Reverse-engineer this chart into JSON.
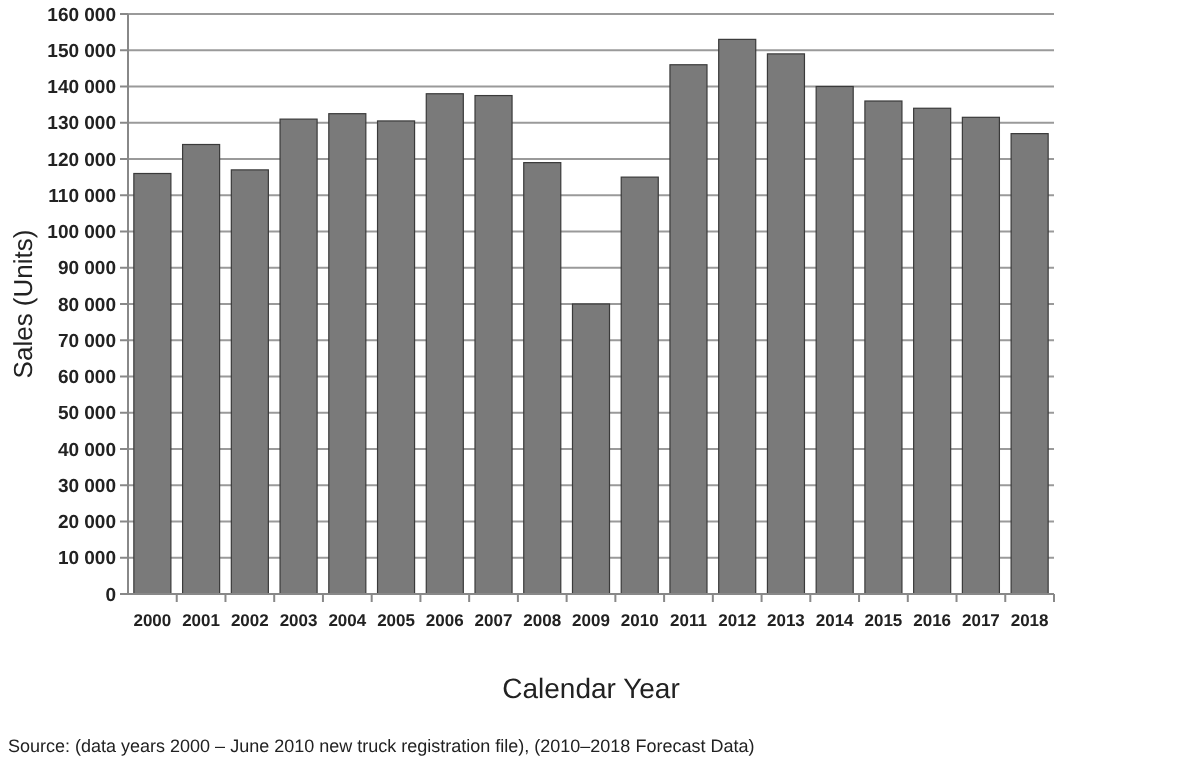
{
  "chart_data": {
    "type": "bar",
    "xlabel": "Calendar Year",
    "ylabel": "Sales (Units)",
    "categories": [
      "2000",
      "2001",
      "2002",
      "2003",
      "2004",
      "2005",
      "2006",
      "2007",
      "2008",
      "2009",
      "2010",
      "2011",
      "2012",
      "2013",
      "2014",
      "2015",
      "2016",
      "2017",
      "2018"
    ],
    "values": [
      116000,
      124000,
      117000,
      131000,
      132500,
      130500,
      138000,
      137500,
      119000,
      80000,
      115000,
      146000,
      153000,
      149000,
      140000,
      136000,
      134000,
      131500,
      127000
    ],
    "color": "#7a7a7a",
    "ylim": [
      0,
      160000
    ],
    "yticks": [
      0,
      {
        "value": 10000,
        "label": "10 000"
      },
      {
        "value": 20000,
        "label": "20 000"
      },
      {
        "value": 30000,
        "label": "30 000"
      },
      {
        "value": 40000,
        "label": "40 000"
      },
      {
        "value": 50000,
        "label": "50 000"
      },
      {
        "value": 60000,
        "label": "60 000"
      },
      {
        "value": 70000,
        "label": "70 000"
      },
      {
        "value": 80000,
        "label": "80 000"
      },
      {
        "value": 90000,
        "label": "90 000"
      },
      {
        "value": 100000,
        "label": "100 000"
      },
      {
        "value": 110000,
        "label": "110 000"
      },
      {
        "value": 120000,
        "label": "120 000"
      },
      {
        "value": 130000,
        "label": "130 000"
      },
      {
        "value": 140000,
        "label": "140 000"
      },
      {
        "value": 150000,
        "label": "150 000"
      },
      {
        "value": 160000,
        "label": "160 000"
      }
    ],
    "grid": "y",
    "annotations": [
      "Source: (data years 2000 – June 2010 new truck registration file), (2010–2018 Forecast Data)"
    ]
  }
}
